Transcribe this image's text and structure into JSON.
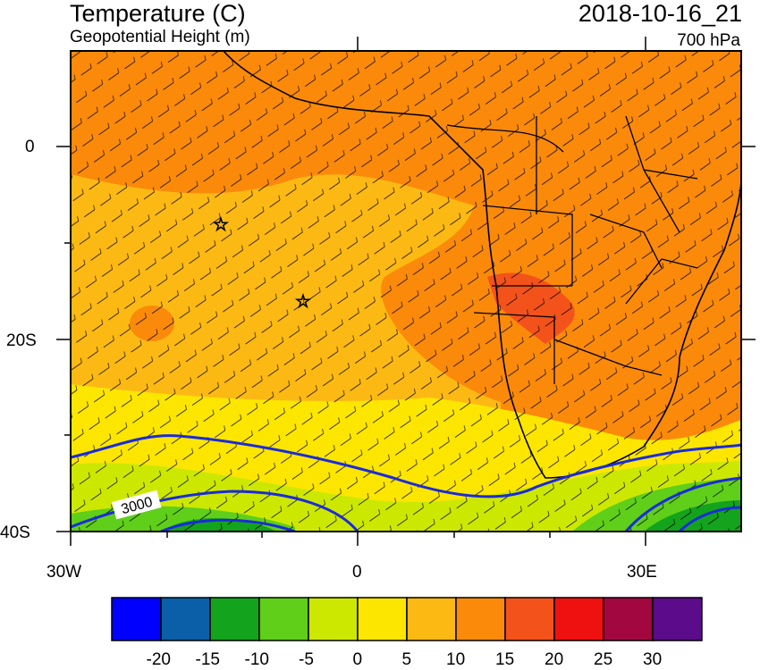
{
  "header": {
    "title": "Temperature (C)",
    "subtitle": "Geopotential Height (m)",
    "valid_time": "2018-10-16_21",
    "level": "700 hPa"
  },
  "axes": {
    "lat_labels": [
      "0",
      "20S",
      "40S"
    ],
    "lon_labels": [
      "30W",
      "0",
      "30E"
    ]
  },
  "contour": {
    "label": "3000"
  },
  "colorbar": {
    "labels": [
      "-20",
      "-15",
      "-10",
      "-5",
      "0",
      "5",
      "10",
      "15",
      "20",
      "25",
      "30"
    ],
    "colors": [
      "#0000ff",
      "#0b5ea8",
      "#13a31c",
      "#5fcf19",
      "#cde800",
      "#fce600",
      "#fdb913",
      "#fb8a0b",
      "#f4521b",
      "#ef1010",
      "#a3073f",
      "#5c0b8a"
    ]
  },
  "colors": {
    "land_border": "#000000",
    "contour": "#1a2bdc",
    "warm": "#fb8a0b",
    "mid": "#fdb913",
    "hot": "#f4521b"
  }
}
